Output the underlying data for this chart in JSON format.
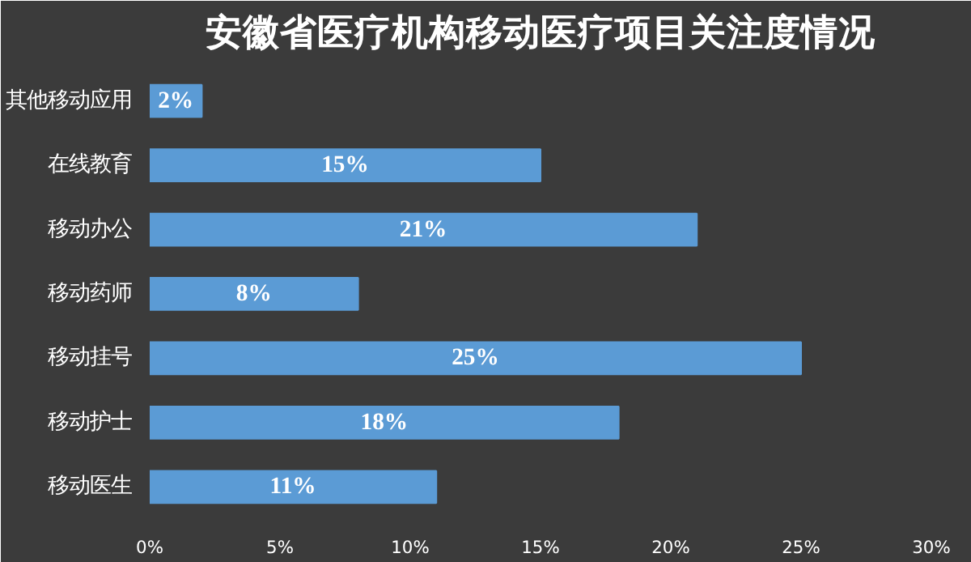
{
  "chart_data": {
    "type": "bar",
    "orientation": "horizontal",
    "title": "安徽省医疗机构移动医疗项目关注度情况",
    "categories": [
      "其他移动应用",
      "在线教育",
      "移动办公",
      "移动药师",
      "移动挂号",
      "移动护士",
      "移动医生"
    ],
    "values": [
      2,
      15,
      21,
      8,
      25,
      18,
      11
    ],
    "value_labels": [
      "2%",
      "15%",
      "21%",
      "8%",
      "25%",
      "18%",
      "11%"
    ],
    "color": "#5b9bd5",
    "xlim": [
      0,
      30
    ],
    "xticks": [
      {
        "value": 0,
        "label": "0%"
      },
      {
        "value": 5,
        "label": "5%"
      },
      {
        "value": 10,
        "label": "10%"
      },
      {
        "value": 15,
        "label": "15%"
      },
      {
        "value": 20,
        "label": "20%"
      },
      {
        "value": 25,
        "label": "25%"
      },
      {
        "value": 30,
        "label": "30%"
      }
    ],
    "grid": false
  }
}
